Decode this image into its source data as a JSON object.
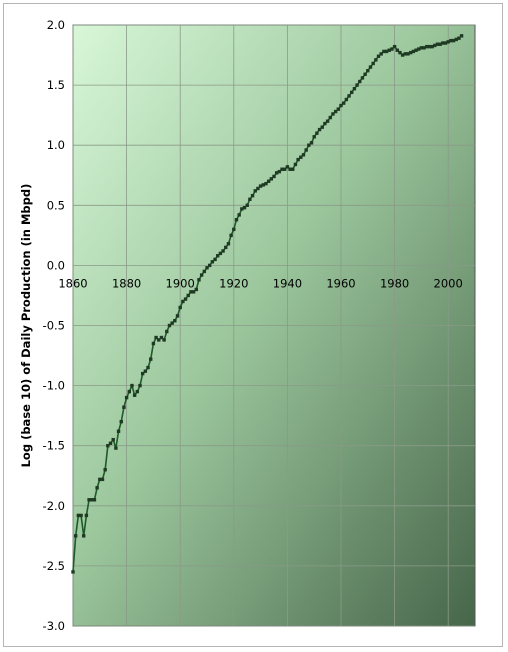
{
  "chart_data": {
    "type": "line",
    "title": "",
    "xlabel": "",
    "ylabel": "Log (base 10) of Daily Production (in Mbpd)",
    "xlim": [
      1860,
      2010
    ],
    "ylim": [
      -3.0,
      2.0
    ],
    "x_ticks": [
      "1860",
      "1880",
      "1900",
      "1920",
      "1940",
      "1960",
      "1980",
      "2000"
    ],
    "y_ticks": [
      "2.0",
      "1.5",
      "1.0",
      "0.5",
      "0.0",
      "-0.5",
      "-1.0",
      "-1.5",
      "-2.0",
      "-2.5",
      "-3.0"
    ],
    "grid": true,
    "legend": "none",
    "colors": {
      "line": "#1e5a2a",
      "marker": "#1f3a22",
      "grid": "#8a9a88",
      "background_light": "#d6f5d6",
      "background_dark": "#4a6a4c"
    },
    "series": [
      {
        "x": [
          1860,
          1861,
          1862,
          1863,
          1864,
          1865,
          1866,
          1867,
          1868,
          1869,
          1870,
          1871,
          1872,
          1873,
          1874,
          1875,
          1876,
          1877,
          1878,
          1879,
          1880,
          1881,
          1882,
          1883,
          1884,
          1885,
          1886,
          1887,
          1888,
          1889,
          1890,
          1891,
          1892,
          1893,
          1894,
          1895,
          1896,
          1897,
          1898,
          1899,
          1900,
          1901,
          1902,
          1903,
          1904,
          1905,
          1906,
          1907,
          1908,
          1909,
          1910,
          1911,
          1912,
          1913,
          1914,
          1915,
          1916,
          1917,
          1918,
          1919,
          1920,
          1921,
          1922,
          1923,
          1924,
          1925,
          1926,
          1927,
          1928,
          1929,
          1930,
          1931,
          1932,
          1933,
          1934,
          1935,
          1936,
          1937,
          1938,
          1939,
          1940,
          1941,
          1942,
          1943,
          1944,
          1945,
          1946,
          1947,
          1948,
          1949,
          1950,
          1951,
          1952,
          1953,
          1954,
          1955,
          1956,
          1957,
          1958,
          1959,
          1960,
          1961,
          1962,
          1963,
          1964,
          1965,
          1966,
          1967,
          1968,
          1969,
          1970,
          1971,
          1972,
          1973,
          1974,
          1975,
          1976,
          1977,
          1978,
          1979,
          1980,
          1981,
          1982,
          1983,
          1984,
          1985,
          1986,
          1987,
          1988,
          1989,
          1990,
          1991,
          1992,
          1993,
          1994,
          1995,
          1996,
          1997,
          1998,
          1999,
          2000,
          2001,
          2002,
          2003,
          2004,
          2005
        ],
        "y": [
          -2.55,
          -2.25,
          -2.08,
          -2.08,
          -2.25,
          -2.08,
          -1.95,
          -1.95,
          -1.95,
          -1.85,
          -1.78,
          -1.78,
          -1.7,
          -1.5,
          -1.48,
          -1.45,
          -1.52,
          -1.38,
          -1.3,
          -1.18,
          -1.1,
          -1.05,
          -1.0,
          -1.08,
          -1.05,
          -1.0,
          -0.9,
          -0.88,
          -0.85,
          -0.78,
          -0.65,
          -0.6,
          -0.62,
          -0.6,
          -0.62,
          -0.55,
          -0.5,
          -0.48,
          -0.46,
          -0.42,
          -0.35,
          -0.3,
          -0.28,
          -0.25,
          -0.22,
          -0.22,
          -0.2,
          -0.12,
          -0.08,
          -0.05,
          -0.02,
          0.0,
          0.03,
          0.05,
          0.08,
          0.1,
          0.12,
          0.15,
          0.18,
          0.25,
          0.3,
          0.38,
          0.42,
          0.47,
          0.48,
          0.5,
          0.55,
          0.58,
          0.62,
          0.64,
          0.66,
          0.67,
          0.68,
          0.7,
          0.72,
          0.74,
          0.77,
          0.78,
          0.8,
          0.8,
          0.82,
          0.8,
          0.8,
          0.84,
          0.88,
          0.9,
          0.92,
          0.96,
          1.0,
          1.02,
          1.07,
          1.1,
          1.13,
          1.15,
          1.18,
          1.2,
          1.23,
          1.26,
          1.28,
          1.3,
          1.33,
          1.35,
          1.38,
          1.41,
          1.44,
          1.47,
          1.5,
          1.53,
          1.56,
          1.59,
          1.62,
          1.65,
          1.68,
          1.71,
          1.74,
          1.76,
          1.78,
          1.78,
          1.79,
          1.8,
          1.82,
          1.79,
          1.77,
          1.75,
          1.76,
          1.76,
          1.77,
          1.78,
          1.79,
          1.8,
          1.81,
          1.81,
          1.82,
          1.82,
          1.82,
          1.83,
          1.84,
          1.84,
          1.85,
          1.85,
          1.86,
          1.87,
          1.87,
          1.88,
          1.89,
          1.91
        ]
      }
    ]
  }
}
